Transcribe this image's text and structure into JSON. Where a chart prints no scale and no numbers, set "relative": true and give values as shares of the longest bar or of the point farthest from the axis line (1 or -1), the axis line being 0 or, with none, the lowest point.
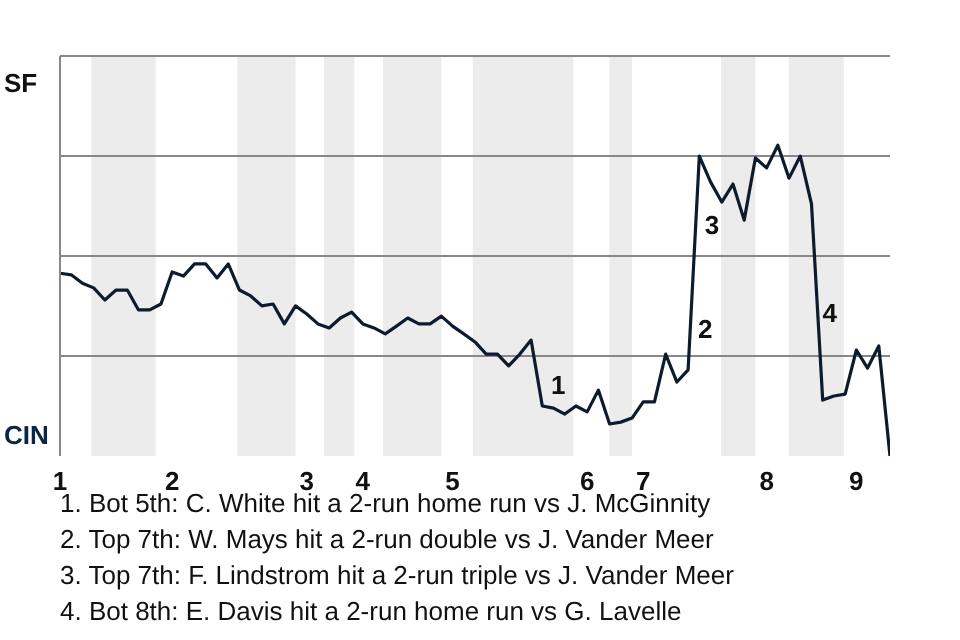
{
  "chart_data": {
    "type": "line",
    "relative": true,
    "categories": [
      "1",
      null,
      null,
      null,
      null,
      null,
      null,
      null,
      null,
      null,
      "2",
      null,
      null,
      null,
      null,
      null,
      null,
      null,
      null,
      null,
      null,
      null,
      "3",
      null,
      null,
      null,
      null,
      "4",
      null,
      null,
      null,
      null,
      null,
      null,
      null,
      "5",
      null,
      null,
      null,
      null,
      null,
      null,
      null,
      null,
      null,
      null,
      null,
      "6",
      null,
      null,
      null,
      null,
      "7",
      null,
      null,
      null,
      null,
      null,
      null,
      null,
      null,
      null,
      null,
      "8",
      null,
      null,
      null,
      null,
      null,
      null,
      null,
      "9",
      null,
      null,
      null
    ],
    "series": [
      {
        "color": "#0d1b2e",
        "values": [
          0.588,
          0.583,
          0.556,
          0.541,
          0.502,
          0.534,
          0.534,
          0.47,
          0.47,
          0.489,
          0.592,
          0.579,
          0.618,
          0.618,
          0.573,
          0.618,
          0.534,
          0.515,
          0.483,
          0.489,
          0.425,
          0.483,
          0.457,
          0.425,
          0.412,
          0.444,
          0.463,
          0.425,
          0.412,
          0.393,
          0.418,
          0.444,
          0.425,
          0.425,
          0.45,
          0.418,
          0.393,
          0.367,
          0.328,
          0.328,
          0.29,
          0.328,
          0.373,
          0.161,
          0.154,
          0.135,
          0.161,
          0.142,
          0.212,
          0.103,
          0.109,
          0.122,
          0.174,
          0.174,
          0.328,
          0.238,
          0.277,
          0.965,
          0.882,
          0.817,
          0.875,
          0.759,
          0.959,
          0.927,
          1,
          0.894,
          0.965,
          0.811,
          0.18,
          0.193,
          0.199,
          0.341,
          0.283,
          0.354,
          0
        ]
      }
    ],
    "grid": "y",
    "marker": "none",
    "line_style": "solid",
    "legend": false,
    "annotations": [
      "SF",
      "CIN",
      "1",
      "2",
      "3",
      "4",
      "1. Bot 5th: C. White hit a 2-run home run vs J. McGinnity",
      "2. Top 7th: W. Mays hit a 2-run double vs J. Vander Meer",
      "3. Top 7th: F. Lindstrom hit a 2-run triple vs J. Vander Meer",
      "4. Bot 8th: E. Davis hit a 2-run home run vs G. Lavelle"
    ]
  }
}
